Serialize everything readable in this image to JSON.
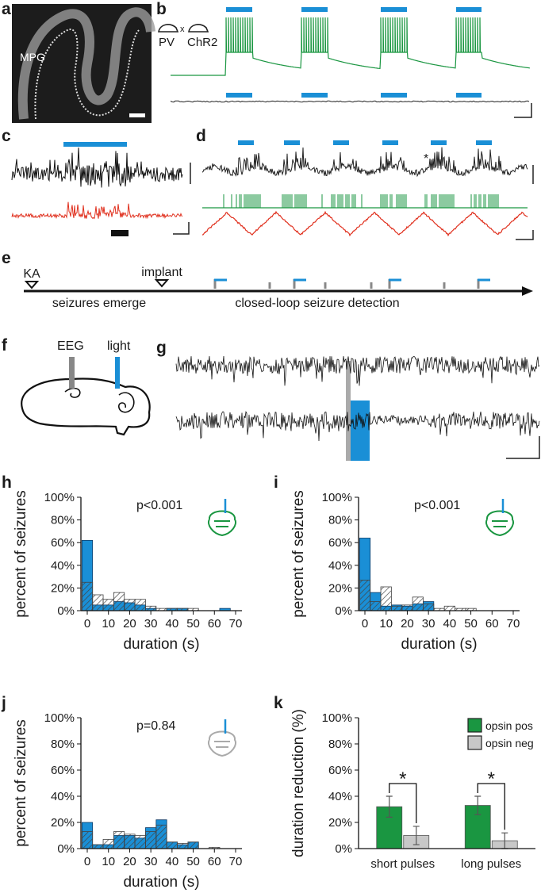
{
  "panels": {
    "a": {
      "letter": "a",
      "label": "MPG"
    },
    "b": {
      "letter": "b",
      "labels": [
        "PV",
        "x",
        "ChR2"
      ]
    },
    "c": {
      "letter": "c"
    },
    "d": {
      "letter": "d",
      "annotation": "*"
    },
    "e": {
      "letter": "e",
      "labels": [
        "KA",
        "implant",
        "seizures emerge",
        "closed-loop seizure detection"
      ]
    },
    "f": {
      "letter": "f",
      "labels": [
        "EEG",
        "light"
      ]
    },
    "g": {
      "letter": "g"
    }
  },
  "chart_data": [
    {
      "type": "histogram",
      "panel": "h",
      "annotation": "p<0.001",
      "xlabel": "duration (s)",
      "ylabel": "percent of seizures",
      "bins": [
        -2.5,
        2.5,
        7.5,
        12.5,
        17.5,
        22.5,
        27.5,
        32.5,
        37.5,
        42.5,
        47.5,
        52.5,
        57.5,
        62.5,
        67.5,
        72.5
      ],
      "series": [
        {
          "color": "#1a8fd6",
          "values": [
            62,
            5,
            5,
            8,
            7,
            5,
            2,
            0,
            2,
            2,
            0,
            0,
            0,
            2,
            0
          ]
        },
        {
          "color": "#444444",
          "pattern": "hatch",
          "values": [
            25,
            14,
            10,
            16,
            10,
            10,
            4,
            2,
            2,
            2,
            2,
            0,
            0,
            0,
            0
          ]
        }
      ],
      "xlim": [
        -3,
        73
      ],
      "xticks": [
        0,
        10,
        20,
        30,
        40,
        50,
        60,
        70
      ],
      "ylim": [
        0,
        100
      ],
      "yticks": [
        {
          "value": 0,
          "label": "0%"
        },
        {
          "value": 20,
          "label": "20%"
        },
        {
          "value": 40,
          "label": "40%"
        },
        {
          "value": 60,
          "label": "60%"
        },
        {
          "value": 80,
          "label": "80%"
        },
        {
          "value": 100,
          "label": "100%"
        }
      ]
    },
    {
      "type": "histogram",
      "panel": "i",
      "annotation": "p<0.001",
      "xlabel": "duration (s)",
      "ylabel": "percent of seizures",
      "bins": [
        -2.5,
        2.5,
        7.5,
        12.5,
        17.5,
        22.5,
        27.5,
        32.5,
        37.5,
        42.5,
        47.5,
        52.5,
        57.5,
        62.5,
        67.5,
        72.5
      ],
      "series": [
        {
          "color": "#1a8fd6",
          "values": [
            64,
            16,
            4,
            5,
            4,
            6,
            8,
            0,
            0,
            0,
            0,
            0,
            0,
            0,
            0
          ]
        },
        {
          "color": "#444444",
          "pattern": "hatch",
          "values": [
            27,
            8,
            21,
            4,
            5,
            12,
            6,
            2,
            4,
            2,
            2,
            0,
            0,
            0,
            0
          ]
        }
      ],
      "xlim": [
        -3,
        73
      ],
      "xticks": [
        0,
        10,
        20,
        30,
        40,
        50,
        60,
        70
      ],
      "ylim": [
        0,
        100
      ],
      "yticks": [
        {
          "value": 0,
          "label": "0%"
        },
        {
          "value": 20,
          "label": "20%"
        },
        {
          "value": 40,
          "label": "40%"
        },
        {
          "value": 60,
          "label": "60%"
        },
        {
          "value": 80,
          "label": "80%"
        },
        {
          "value": 100,
          "label": "100%"
        }
      ]
    },
    {
      "type": "histogram",
      "panel": "j",
      "annotation": "p=0.84",
      "xlabel": "duration (s)",
      "ylabel": "percent of seizures",
      "bins": [
        -2.5,
        2.5,
        7.5,
        12.5,
        17.5,
        22.5,
        27.5,
        32.5,
        37.5,
        42.5,
        47.5,
        52.5,
        57.5,
        62.5,
        67.5,
        72.5
      ],
      "series": [
        {
          "color": "#1a8fd6",
          "values": [
            20,
            3,
            3,
            10,
            10,
            8,
            16,
            22,
            5,
            3,
            5,
            0,
            0,
            0,
            0
          ]
        },
        {
          "color": "#444444",
          "pattern": "hatch",
          "values": [
            13,
            3,
            7,
            13,
            11,
            10,
            13,
            18,
            5,
            4,
            5,
            0,
            1,
            0,
            0
          ]
        }
      ],
      "xlim": [
        -3,
        73
      ],
      "xticks": [
        0,
        10,
        20,
        30,
        40,
        50,
        60,
        70
      ],
      "ylim": [
        0,
        100
      ],
      "yticks": [
        {
          "value": 0,
          "label": "0%"
        },
        {
          "value": 20,
          "label": "20%"
        },
        {
          "value": 40,
          "label": "40%"
        },
        {
          "value": 60,
          "label": "60%"
        },
        {
          "value": 80,
          "label": "80%"
        },
        {
          "value": 100,
          "label": "100%"
        }
      ]
    },
    {
      "type": "bar",
      "panel": "k",
      "ylabel": "duration reduction (%)",
      "categories": [
        "short pulses",
        "long pulses"
      ],
      "series": [
        {
          "name": "opsin pos",
          "color": "#1a9641",
          "values": [
            32,
            33
          ],
          "errors": [
            8,
            7
          ]
        },
        {
          "name": "opsin neg",
          "color": "#c8c8c8",
          "values": [
            10,
            6
          ],
          "errors": [
            7,
            6
          ]
        }
      ],
      "annotations": [
        "*",
        "*"
      ],
      "legend": "upper right",
      "ylim": [
        0,
        100
      ],
      "yticks": [
        {
          "value": 0,
          "label": "0%"
        },
        {
          "value": 20,
          "label": "20%"
        },
        {
          "value": 40,
          "label": "40%"
        },
        {
          "value": 60,
          "label": "60%"
        },
        {
          "value": 80,
          "label": "80%"
        },
        {
          "value": 100,
          "label": "100%"
        }
      ]
    }
  ]
}
